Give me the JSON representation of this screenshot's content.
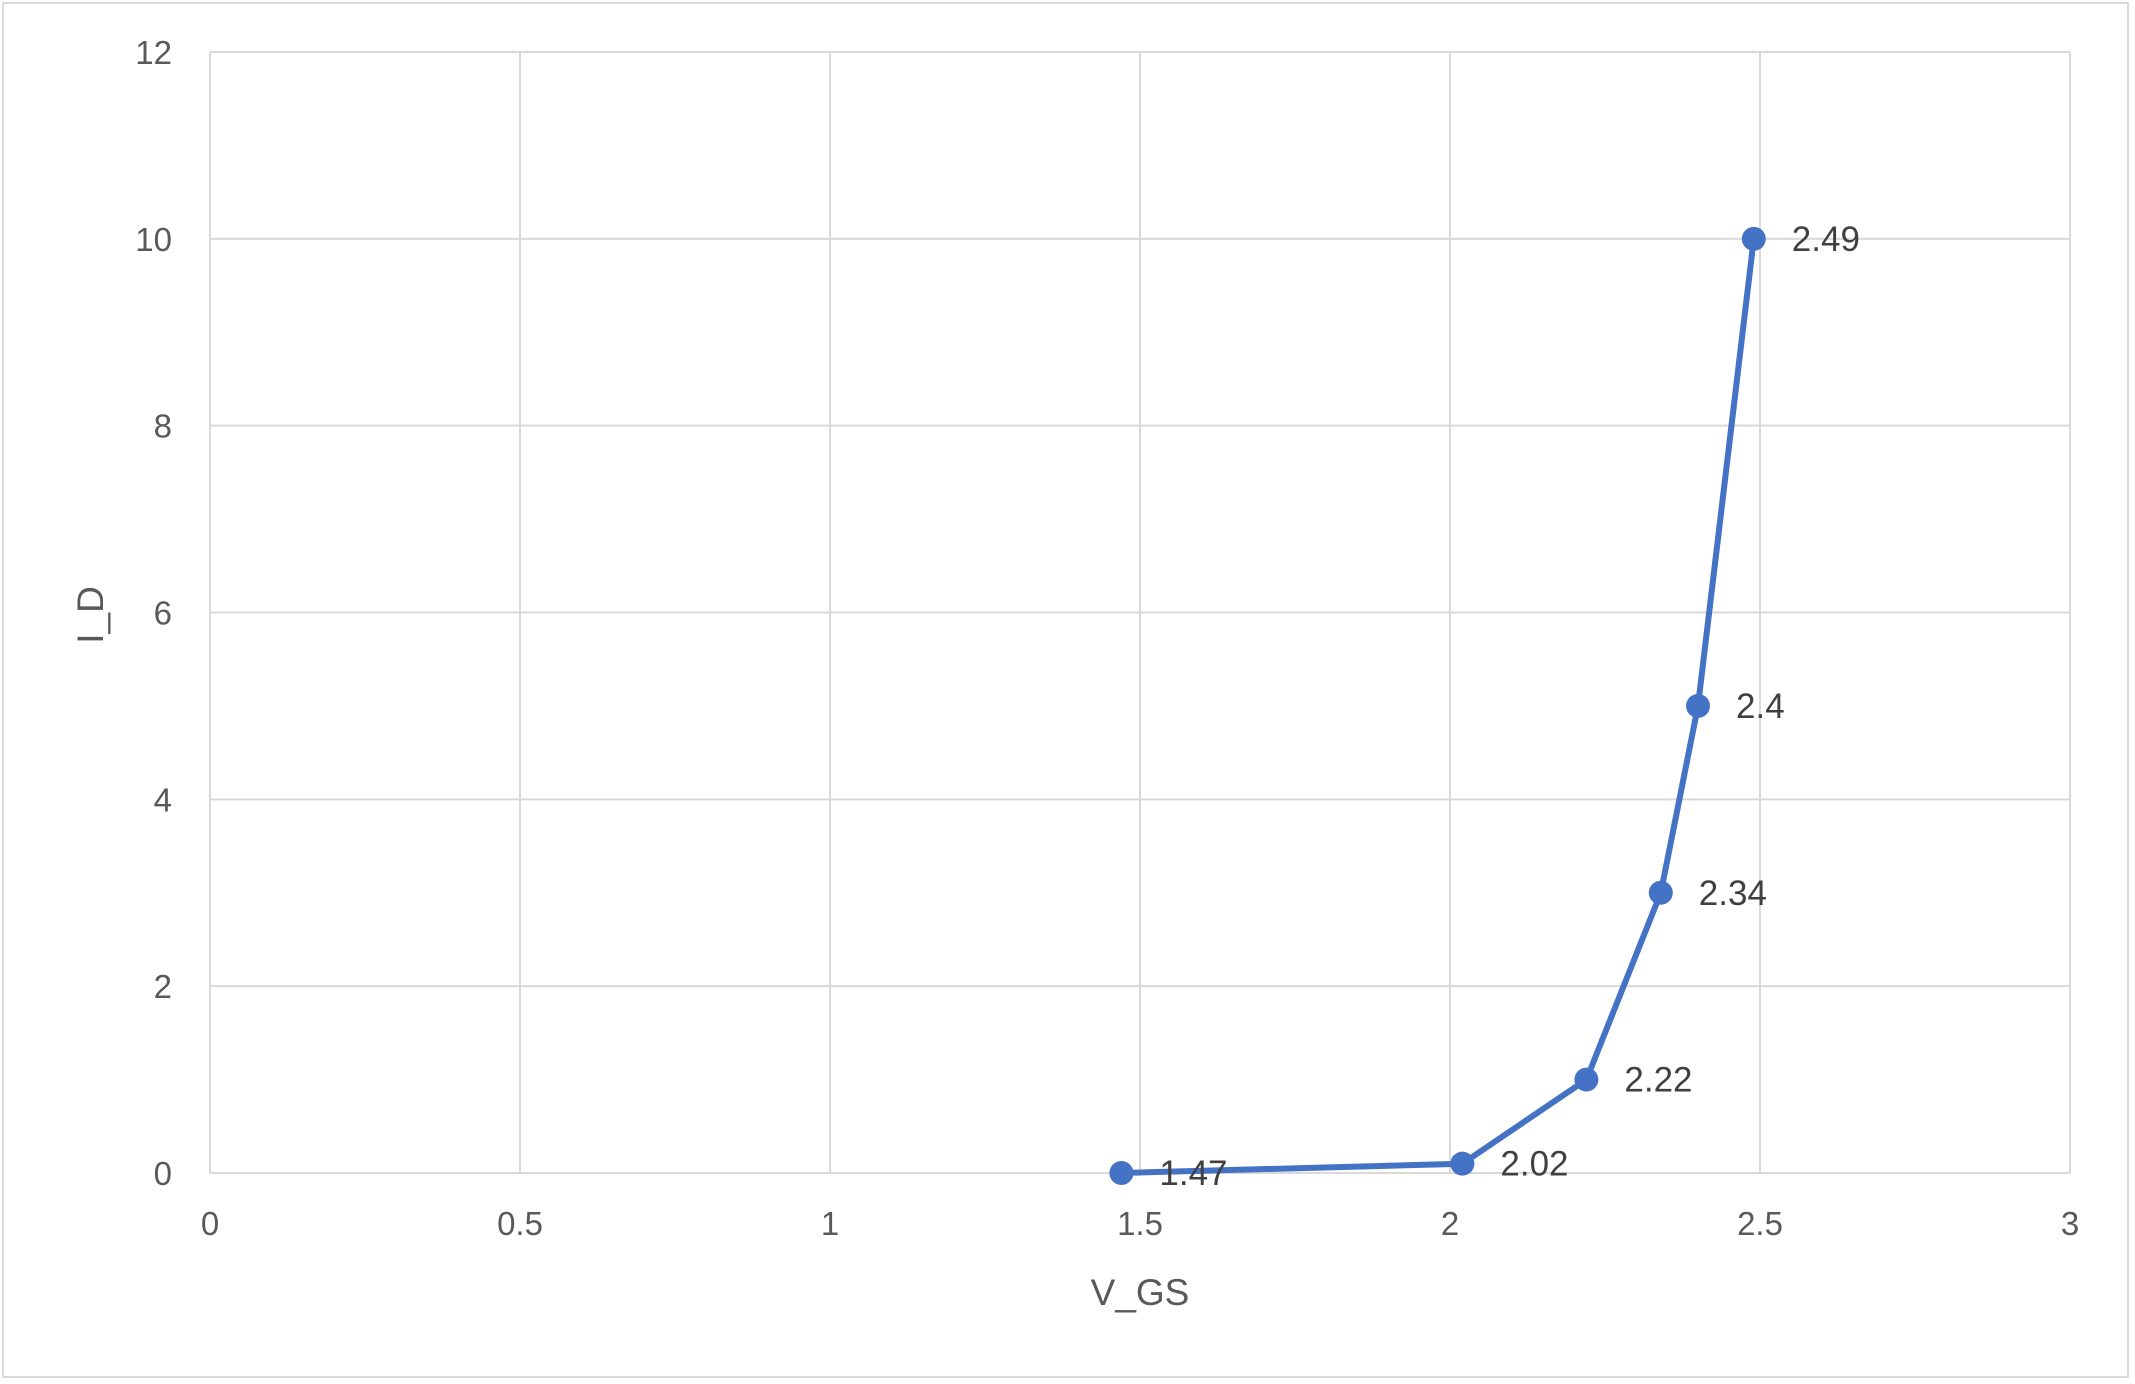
{
  "chart_data": {
    "type": "line",
    "title": "",
    "xlabel": "V_GS",
    "ylabel": "I_D",
    "xlim": [
      0,
      3
    ],
    "ylim": [
      0,
      12
    ],
    "x_ticks": [
      "0",
      "0.5",
      "1",
      "1.5",
      "2",
      "2.5",
      "3"
    ],
    "y_ticks": [
      "0",
      "2",
      "4",
      "6",
      "8",
      "10",
      "12"
    ],
    "grid": true,
    "legend": "none",
    "series": [
      {
        "color": "#4472c4",
        "points": [
          {
            "x": 1.47,
            "y": 0,
            "label": "1.47"
          },
          {
            "x": 2.02,
            "y": 0.1,
            "label": "2.02"
          },
          {
            "x": 2.22,
            "y": 1,
            "label": "2.22"
          },
          {
            "x": 2.34,
            "y": 3,
            "label": "2.34"
          },
          {
            "x": 2.4,
            "y": 5,
            "label": "2.4"
          },
          {
            "x": 2.49,
            "y": 10,
            "label": "2.49"
          }
        ]
      }
    ]
  }
}
